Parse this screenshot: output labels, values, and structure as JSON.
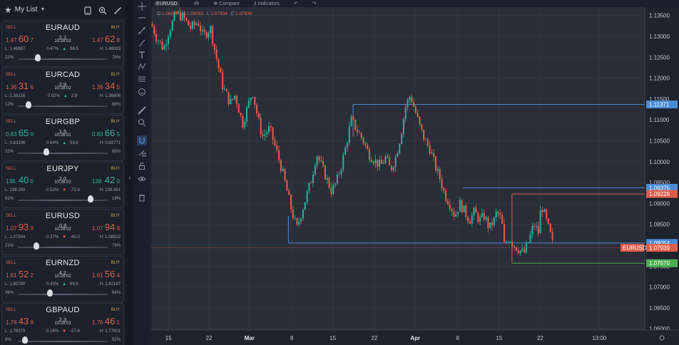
{
  "watchlist": {
    "title": "My List",
    "cards": [
      {
        "symbol": "EURAUD",
        "sell_label": "SELL",
        "buy_label": "BUY",
        "sell_pre": "1.47",
        "sell_big": "60",
        "sell_pip": "7",
        "buy_pre": "1.47",
        "buy_big": "62",
        "buy_pip": "8",
        "spread": "2.1",
        "time": "10:28:02",
        "low": "L: 1.46887",
        "chg_pct": "0.47%",
        "chg_pts": "68.5",
        "dir": "up",
        "high": "H: 1.48083",
        "left_pct": "22%",
        "right_pct": "78%",
        "sentiment": 0.22,
        "color": "red"
      },
      {
        "symbol": "EURCAD",
        "sell_label": "SELL",
        "buy_label": "BUY",
        "sell_pre": "1.36",
        "sell_big": "31",
        "sell_pip": "6",
        "buy_pre": "1.36",
        "buy_big": "34",
        "buy_pip": "5",
        "spread": "2.9",
        "time": "10:28:02",
        "low": "L: 1.36216",
        "chg_pct": "0.02%",
        "chg_pts": "2.9",
        "dir": "up",
        "high": "H: 1.36806",
        "left_pct": "12%",
        "right_pct": "88%",
        "sentiment": 0.12,
        "color": "red"
      },
      {
        "symbol": "EURGBP",
        "sell_label": "SELL",
        "buy_label": "BUY",
        "sell_pre": "0.83",
        "sell_big": "65",
        "sell_pip": "0",
        "buy_pre": "0.83",
        "buy_big": "66",
        "buy_pip": "5",
        "spread": "1.5",
        "time": "10:28:01",
        "low": "L: 0.83106",
        "chg_pct": "0.64%",
        "chg_pts": "53.6",
        "dir": "up",
        "high": "H: 0.83771",
        "left_pct": "32%",
        "right_pct": "68%",
        "sentiment": 0.32,
        "color": "green"
      },
      {
        "symbol": "EURJPY",
        "sell_label": "SELL",
        "buy_label": "BUY",
        "sell_pre": "138.",
        "sell_big": "40",
        "sell_pip": "0",
        "buy_pre": "138.",
        "buy_big": "42",
        "buy_pip": "0",
        "spread": "2.0",
        "time": "10:28:02",
        "low": "L: 138.249",
        "chg_pct": "-0.52%",
        "chg_pts": "-72.4",
        "dir": "down",
        "high": "H: 139.481",
        "left_pct": "81%",
        "right_pct": "19%",
        "sentiment": 0.81,
        "color": "green"
      },
      {
        "symbol": "EURUSD",
        "sell_label": "SELL",
        "buy_label": "BUY",
        "sell_pre": "1.07",
        "sell_big": "93",
        "sell_pip": "9",
        "buy_pre": "1.07",
        "buy_big": "94",
        "buy_pip": "8",
        "spread": "0.9",
        "time": "10:28:02",
        "low": "L: 1.07934",
        "chg_pct": "-0.37%",
        "chg_pts": "-40.0",
        "dir": "down",
        "high": "H: 1.08512",
        "left_pct": "21%",
        "right_pct": "79%",
        "sentiment": 0.21,
        "color": "red"
      },
      {
        "symbol": "EURNZD",
        "sell_label": "SELL",
        "buy_label": "BUY",
        "sell_pre": "1.61",
        "sell_big": "52",
        "sell_pip": "2",
        "buy_pre": "1.61",
        "buy_big": "56",
        "buy_pip": "4",
        "spread": "4.2",
        "time": "10:28:02",
        "low": "L: 1.60780",
        "chg_pct": "0.43%",
        "chg_pts": "69.6",
        "dir": "up",
        "high": "H: 1.62167",
        "left_pct": "36%",
        "right_pct": "64%",
        "sentiment": 0.36,
        "color": "red"
      },
      {
        "symbol": "GBPAUD",
        "sell_label": "SELL",
        "buy_label": "BUY",
        "sell_pre": "1.76",
        "sell_big": "43",
        "sell_pip": "8",
        "buy_pre": "1.76",
        "buy_big": "46",
        "buy_pip": "1",
        "spread": "2.3",
        "time": "10:28:02",
        "low": "L: 1.76379",
        "chg_pct": "-0.16%",
        "chg_pts": "-27.6",
        "dir": "down",
        "high": "H: 1.77601",
        "left_pct": "8%",
        "right_pct": "92%",
        "sentiment": 0.08,
        "color": "red"
      }
    ]
  },
  "chart_header": {
    "symbol": "EURUSD",
    "interval": "4h",
    "compare_label": "Compare",
    "indicators_label": "Indicators"
  },
  "ohlc": {
    "o_label": "O",
    "o": "1.08006",
    "h_label": "H",
    "h": "1.08081",
    "l_label": "L",
    "l": "1.07934",
    "c_label": "C",
    "c": "1.07939"
  },
  "chart_data": {
    "type": "line",
    "title": "",
    "symbol": "EURUSD",
    "price_ticks": [
      "1.13500",
      "1.13000",
      "1.12500",
      "1.12000",
      "1.11500",
      "1.11000",
      "1.10500",
      "1.10000",
      "1.09500",
      "1.09000",
      "1.08500",
      "1.08000",
      "1.07500",
      "1.07000",
      "1.06500",
      "1.06000"
    ],
    "price_tick_values": [
      1.135,
      1.13,
      1.125,
      1.12,
      1.115,
      1.11,
      1.105,
      1.1,
      1.095,
      1.09,
      1.085,
      1.08,
      1.075,
      1.07,
      1.065,
      1.06
    ],
    "ylim": [
      1.0597,
      1.137
    ],
    "time_ticks": [
      "15",
      "22",
      "Mar",
      "8",
      "15",
      "22",
      "Apr",
      "8",
      "15",
      "22",
      "13:00"
    ],
    "time_tick_pos": [
      0.035,
      0.117,
      0.199,
      0.285,
      0.368,
      0.452,
      0.535,
      0.621,
      0.705,
      0.788,
      0.908
    ],
    "bold_ticks": [
      "Mar",
      "Apr"
    ],
    "close_path": [
      [
        0.0,
        1.133
      ],
      [
        0.01,
        1.13
      ],
      [
        0.025,
        1.127
      ],
      [
        0.035,
        1.131
      ],
      [
        0.05,
        1.1355
      ],
      [
        0.065,
        1.1345
      ],
      [
        0.08,
        1.132
      ],
      [
        0.095,
        1.1335
      ],
      [
        0.105,
        1.13
      ],
      [
        0.12,
        1.132
      ],
      [
        0.13,
        1.126
      ],
      [
        0.145,
        1.118
      ],
      [
        0.16,
        1.114
      ],
      [
        0.17,
        1.116
      ],
      [
        0.185,
        1.109
      ],
      [
        0.195,
        1.113
      ],
      [
        0.205,
        1.117
      ],
      [
        0.215,
        1.111
      ],
      [
        0.225,
        1.106
      ],
      [
        0.24,
        1.108
      ],
      [
        0.255,
        1.102
      ],
      [
        0.265,
        1.098
      ],
      [
        0.275,
        1.093
      ],
      [
        0.285,
        1.088
      ],
      [
        0.295,
        1.084
      ],
      [
        0.31,
        1.09
      ],
      [
        0.325,
        1.096
      ],
      [
        0.335,
        1.102
      ],
      [
        0.345,
        1.099
      ],
      [
        0.355,
        1.096
      ],
      [
        0.365,
        1.093
      ],
      [
        0.375,
        1.095
      ],
      [
        0.385,
        1.099
      ],
      [
        0.395,
        1.104
      ],
      [
        0.405,
        1.11
      ],
      [
        0.415,
        1.108
      ],
      [
        0.43,
        1.105
      ],
      [
        0.44,
        1.102
      ],
      [
        0.455,
        1.1
      ],
      [
        0.465,
        1.099
      ],
      [
        0.475,
        1.101
      ],
      [
        0.485,
        1.098
      ],
      [
        0.495,
        1.101
      ],
      [
        0.505,
        1.106
      ],
      [
        0.515,
        1.113
      ],
      [
        0.525,
        1.116
      ],
      [
        0.535,
        1.112
      ],
      [
        0.545,
        1.108
      ],
      [
        0.555,
        1.105
      ],
      [
        0.565,
        1.103
      ],
      [
        0.575,
        1.099
      ],
      [
        0.585,
        1.096
      ],
      [
        0.595,
        1.092
      ],
      [
        0.605,
        1.09
      ],
      [
        0.615,
        1.087
      ],
      [
        0.625,
        1.09
      ],
      [
        0.635,
        1.088
      ],
      [
        0.645,
        1.086
      ],
      [
        0.655,
        1.088
      ],
      [
        0.665,
        1.086
      ],
      [
        0.675,
        1.087
      ],
      [
        0.685,
        1.084
      ],
      [
        0.695,
        1.086
      ],
      [
        0.7,
        1.088
      ],
      [
        0.71,
        1.086
      ],
      [
        0.715,
        1.08
      ],
      [
        0.725,
        1.082
      ],
      [
        0.735,
        1.08
      ],
      [
        0.745,
        1.079
      ],
      [
        0.755,
        1.078
      ],
      [
        0.765,
        1.081
      ],
      [
        0.775,
        1.085
      ],
      [
        0.785,
        1.083
      ],
      [
        0.79,
        1.09
      ],
      [
        0.8,
        1.086
      ],
      [
        0.81,
        1.082
      ],
      [
        0.815,
        1.0794
      ]
    ],
    "levels": [
      {
        "label": "1.11371",
        "value": 1.11371,
        "color": "#4a8bd8",
        "start": 0.409
      },
      {
        "label": "1.09375",
        "value": 1.09375,
        "color": "#4a8bd8",
        "start": 0.632
      },
      {
        "label": "1.09228",
        "value": 1.09228,
        "color": "#e05e4a",
        "start": 0.731
      },
      {
        "label": "1.08054",
        "value": 1.08054,
        "color": "#4a8bd8",
        "start": 0.278
      },
      {
        "label": "1.07570",
        "value": 1.0757,
        "color": "#4caf50",
        "start": 0.731
      }
    ],
    "current_price": {
      "label": "1.07939",
      "symbol_tag": "EURUSD",
      "value": 1.07939,
      "color": "#e05e4a"
    }
  }
}
